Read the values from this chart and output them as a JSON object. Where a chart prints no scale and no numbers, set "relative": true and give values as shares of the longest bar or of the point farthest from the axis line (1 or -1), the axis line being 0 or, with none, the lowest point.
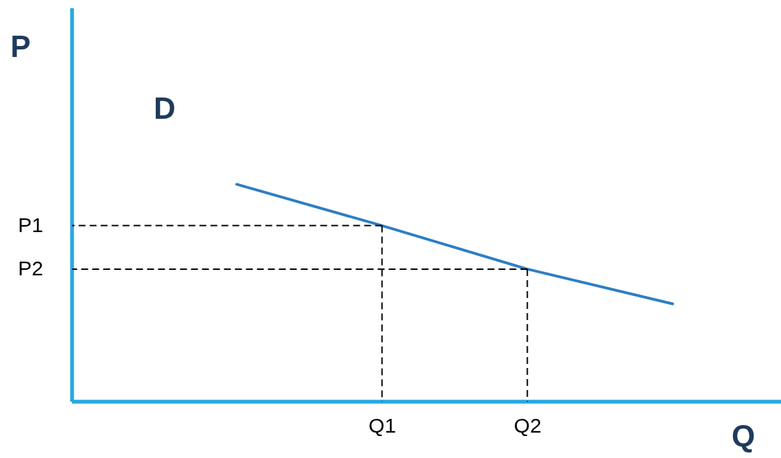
{
  "chart_data": {
    "type": "line",
    "relative": true,
    "xlabel": "Q",
    "ylabel": "P",
    "annotations": [
      "D"
    ],
    "categories": [
      null,
      "Q1",
      "Q2",
      null
    ],
    "series": [
      {
        "color": "#2e7ec4",
        "values": [
          1,
          0.81,
          0.61,
          0.45
        ]
      }
    ],
    "ref_lines": [
      {
        "axis": "y",
        "value": 0.81,
        "label": "P1",
        "line_style": "dashed",
        "color": "#000000"
      },
      {
        "axis": "y",
        "value": 0.61,
        "label": "P2",
        "line_style": "dashed",
        "color": "#000000"
      },
      {
        "axis": "x",
        "value": "Q1",
        "line_style": "dashed",
        "color": "#000000"
      },
      {
        "axis": "x",
        "value": "Q2",
        "line_style": "dashed",
        "color": "#000000"
      }
    ]
  }
}
